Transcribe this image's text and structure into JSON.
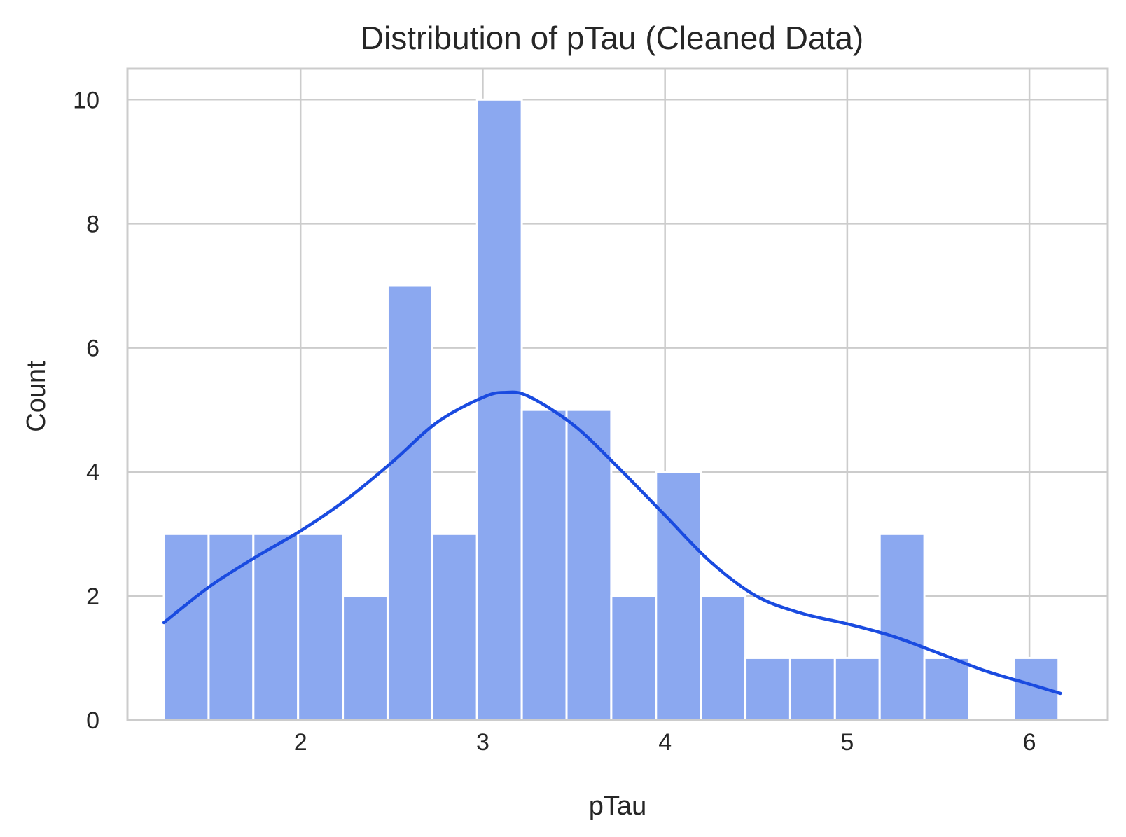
{
  "chart_data": {
    "type": "bar",
    "subtype": "histogram_with_kde",
    "title": "Distribution of pTau (Cleaned Data)",
    "xlabel": "pTau",
    "ylabel": "Count",
    "xlim": [
      1.05,
      6.43
    ],
    "ylim": [
      0,
      10.5
    ],
    "xticks": [
      2,
      3,
      4,
      5,
      6
    ],
    "yticks": [
      0,
      2,
      4,
      6,
      8,
      10
    ],
    "grid": true,
    "legend": "none",
    "bin_start": 1.25,
    "bin_width": 0.2455,
    "counts": [
      3,
      3,
      3,
      3,
      2,
      7,
      3,
      10,
      5,
      5,
      2,
      4,
      2,
      1,
      1,
      1,
      3,
      1,
      0,
      1
    ],
    "kde_curve": {
      "x": [
        1.25,
        1.5,
        1.75,
        2.0,
        2.25,
        2.5,
        2.75,
        3.0,
        3.12,
        3.25,
        3.5,
        3.75,
        4.0,
        4.25,
        4.5,
        4.75,
        5.0,
        5.25,
        5.5,
        5.75,
        6.0,
        6.17
      ],
      "y": [
        1.57,
        2.15,
        2.62,
        3.05,
        3.55,
        4.15,
        4.8,
        5.2,
        5.28,
        5.22,
        4.75,
        4.05,
        3.3,
        2.55,
        2.0,
        1.72,
        1.55,
        1.35,
        1.08,
        0.8,
        0.58,
        0.43
      ]
    },
    "colors": {
      "bar_fill": "#8ba8f0",
      "kde_line": "#1a4be0",
      "grid": "#cccccc",
      "text": "#262626"
    }
  }
}
